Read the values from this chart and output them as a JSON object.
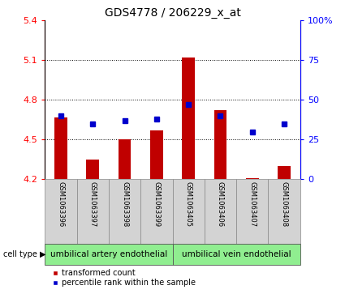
{
  "title": "GDS4778 / 206229_x_at",
  "samples": [
    "GSM1063396",
    "GSM1063397",
    "GSM1063398",
    "GSM1063399",
    "GSM1063405",
    "GSM1063406",
    "GSM1063407",
    "GSM1063408"
  ],
  "red_values": [
    4.67,
    4.35,
    4.5,
    4.57,
    5.12,
    4.72,
    4.21,
    4.3
  ],
  "blue_values": [
    40,
    35,
    37,
    38,
    47,
    40,
    30,
    35
  ],
  "ylim_left": [
    4.2,
    5.4
  ],
  "yticks_left": [
    4.2,
    4.5,
    4.8,
    5.1,
    5.4
  ],
  "ylim_right": [
    0,
    100
  ],
  "yticks_right": [
    0,
    25,
    50,
    75,
    100
  ],
  "ytick_labels_right": [
    "0",
    "25",
    "50",
    "75",
    "100%"
  ],
  "bar_color": "#C00000",
  "dot_color": "#0000CC",
  "group1_label": "umbilical artery endothelial",
  "group2_label": "umbilical vein endothelial",
  "cell_type_label": "cell type",
  "legend_red": "transformed count",
  "legend_blue": "percentile rank within the sample",
  "background_color": "#ffffff",
  "plot_area_color": "#ffffff",
  "group_box_color": "#90EE90",
  "sample_box_color": "#d3d3d3",
  "title_fontsize": 10,
  "tick_fontsize": 8,
  "sample_fontsize": 6,
  "group_fontsize": 7.5,
  "legend_fontsize": 7
}
